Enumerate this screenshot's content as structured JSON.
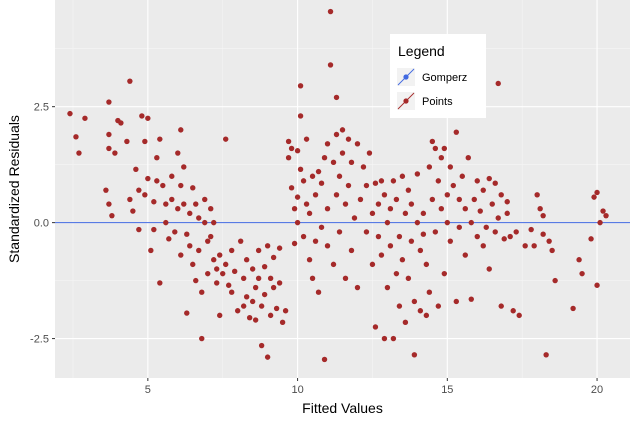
{
  "chart_data": {
    "type": "scatter",
    "title": "",
    "xlabel": "Fitted Values",
    "ylabel": "Standardized Residuals",
    "xlim": [
      1.9,
      21.1
    ],
    "ylim": [
      -3.35,
      4.8
    ],
    "x_ticks": [
      5,
      10,
      15,
      20
    ],
    "y_ticks": [
      -2.5,
      0.0,
      2.5
    ],
    "y_tick_labels": [
      "-2.5",
      "0.0",
      "2.5"
    ],
    "grid": true,
    "background": "#ebebeb",
    "point_color": "#a52a2a",
    "reference_line": {
      "y": 0.0,
      "color": "#4169e1"
    },
    "legend": {
      "title": "Legend",
      "placement": "top-center-right",
      "entries": [
        {
          "label": "Gomperz",
          "color": "#4169e1",
          "kind": "line"
        },
        {
          "label": "Points",
          "color": "#a52a2a",
          "kind": "point"
        }
      ]
    },
    "series": [
      {
        "name": "Points",
        "points": [
          [
            2.4,
            2.35
          ],
          [
            2.6,
            1.85
          ],
          [
            2.7,
            1.5
          ],
          [
            2.9,
            2.25
          ],
          [
            3.7,
            2.6
          ],
          [
            3.7,
            1.9
          ],
          [
            3.7,
            1.6
          ],
          [
            3.6,
            0.7
          ],
          [
            3.7,
            0.4
          ],
          [
            3.8,
            0.15
          ],
          [
            3.9,
            1.5
          ],
          [
            4.0,
            2.2
          ],
          [
            4.1,
            2.15
          ],
          [
            4.3,
            1.75
          ],
          [
            4.4,
            3.05
          ],
          [
            4.4,
            0.5
          ],
          [
            4.5,
            0.25
          ],
          [
            4.6,
            1.15
          ],
          [
            4.7,
            0.7
          ],
          [
            4.7,
            -0.15
          ],
          [
            4.8,
            2.3
          ],
          [
            4.9,
            1.75
          ],
          [
            4.9,
            0.6
          ],
          [
            5.0,
            2.25
          ],
          [
            5.0,
            0.95
          ],
          [
            5.1,
            -0.6
          ],
          [
            5.2,
            0.45
          ],
          [
            5.2,
            -0.15
          ],
          [
            5.3,
            1.4
          ],
          [
            5.3,
            0.9
          ],
          [
            5.4,
            -1.3
          ],
          [
            5.4,
            1.8
          ],
          [
            5.5,
            0.8
          ],
          [
            5.6,
            0.4
          ],
          [
            5.6,
            0.0
          ],
          [
            5.7,
            -0.35
          ],
          [
            5.8,
            1.0
          ],
          [
            5.8,
            0.5
          ],
          [
            5.9,
            -0.2
          ],
          [
            6.0,
            0.3
          ],
          [
            6.0,
            1.5
          ],
          [
            6.1,
            2.0
          ],
          [
            6.1,
            0.8
          ],
          [
            6.1,
            -0.7
          ],
          [
            6.2,
            1.2
          ],
          [
            6.2,
            0.4
          ],
          [
            6.3,
            -0.25
          ],
          [
            6.3,
            -1.95
          ],
          [
            6.4,
            0.2
          ],
          [
            6.4,
            -0.5
          ],
          [
            6.5,
            0.75
          ],
          [
            6.5,
            -0.9
          ],
          [
            6.6,
            0.4
          ],
          [
            6.6,
            -1.25
          ],
          [
            6.7,
            0.1
          ],
          [
            6.7,
            -0.6
          ],
          [
            6.8,
            -2.5
          ],
          [
            6.8,
            -1.5
          ],
          [
            6.9,
            0.5
          ],
          [
            6.9,
            0.0
          ],
          [
            7.0,
            -0.4
          ],
          [
            7.0,
            -1.1
          ],
          [
            7.1,
            0.3
          ],
          [
            7.1,
            -0.3
          ],
          [
            7.2,
            0.0
          ],
          [
            7.2,
            -0.8
          ],
          [
            7.3,
            -1.0
          ],
          [
            7.3,
            -1.3
          ],
          [
            7.4,
            -0.7
          ],
          [
            7.4,
            -2.0
          ],
          [
            7.5,
            -1.1
          ],
          [
            7.6,
            1.8
          ],
          [
            7.6,
            -0.9
          ],
          [
            7.7,
            -1.35
          ],
          [
            7.8,
            -0.6
          ],
          [
            7.8,
            -1.5
          ],
          [
            7.9,
            -1.05
          ],
          [
            8.0,
            -1.9
          ],
          [
            8.1,
            -0.4
          ],
          [
            8.2,
            -1.2
          ],
          [
            8.2,
            -1.8
          ],
          [
            8.3,
            -0.8
          ],
          [
            8.3,
            -1.6
          ],
          [
            8.4,
            -2.05
          ],
          [
            8.5,
            -1.0
          ],
          [
            8.5,
            -1.7
          ],
          [
            8.6,
            -1.4
          ],
          [
            8.6,
            -2.1
          ],
          [
            8.7,
            -0.6
          ],
          [
            8.7,
            -1.2
          ],
          [
            8.8,
            -2.65
          ],
          [
            8.8,
            -1.8
          ],
          [
            8.9,
            -0.95
          ],
          [
            8.9,
            -1.55
          ],
          [
            9.0,
            -2.9
          ],
          [
            9.0,
            -0.5
          ],
          [
            9.1,
            -1.2
          ],
          [
            9.1,
            -2.0
          ],
          [
            9.2,
            -0.75
          ],
          [
            9.2,
            -1.4
          ],
          [
            9.3,
            -1.85
          ],
          [
            9.4,
            -0.55
          ],
          [
            9.4,
            -1.3
          ],
          [
            9.5,
            -2.15
          ],
          [
            9.6,
            -1.9
          ],
          [
            9.7,
            1.75
          ],
          [
            9.7,
            1.4
          ],
          [
            9.8,
            1.6
          ],
          [
            9.8,
            0.75
          ],
          [
            9.9,
            -0.45
          ],
          [
            9.9,
            0.3
          ],
          [
            10.0,
            1.55
          ],
          [
            10.0,
            0.55
          ],
          [
            10.0,
            0.0
          ],
          [
            10.1,
            2.95
          ],
          [
            10.1,
            2.3
          ],
          [
            10.1,
            1.15
          ],
          [
            10.2,
            0.9
          ],
          [
            10.2,
            -0.3
          ],
          [
            10.3,
            1.8
          ],
          [
            10.3,
            0.4
          ],
          [
            10.4,
            -0.8
          ],
          [
            10.4,
            0.2
          ],
          [
            10.5,
            1.0
          ],
          [
            10.5,
            -1.2
          ],
          [
            10.6,
            0.6
          ],
          [
            10.6,
            -0.4
          ],
          [
            10.7,
            1.1
          ],
          [
            10.7,
            -1.5
          ],
          [
            10.8,
            -0.1
          ],
          [
            10.8,
            0.85
          ],
          [
            10.9,
            -2.95
          ],
          [
            10.9,
            1.4
          ],
          [
            11.0,
            -0.5
          ],
          [
            11.0,
            0.3
          ],
          [
            11.0,
            1.7
          ],
          [
            11.1,
            4.55
          ],
          [
            11.1,
            3.4
          ],
          [
            11.2,
            1.3
          ],
          [
            11.2,
            -0.9
          ],
          [
            11.3,
            2.7
          ],
          [
            11.3,
            1.9
          ],
          [
            11.3,
            0.6
          ],
          [
            11.4,
            1.0
          ],
          [
            11.4,
            -0.2
          ],
          [
            11.5,
            2.0
          ],
          [
            11.5,
            1.5
          ],
          [
            11.6,
            0.4
          ],
          [
            11.6,
            -1.2
          ],
          [
            11.7,
            1.8
          ],
          [
            11.7,
            0.8
          ],
          [
            11.8,
            -0.6
          ],
          [
            11.8,
            1.3
          ],
          [
            11.9,
            0.1
          ],
          [
            12.0,
            1.7
          ],
          [
            12.0,
            -1.4
          ],
          [
            12.1,
            0.5
          ],
          [
            12.2,
            1.2
          ],
          [
            12.3,
            -0.2
          ],
          [
            12.3,
            0.8
          ],
          [
            12.4,
            1.5
          ],
          [
            12.5,
            0.2
          ],
          [
            12.5,
            -0.9
          ],
          [
            12.6,
            0.85
          ],
          [
            12.6,
            -2.25
          ],
          [
            12.7,
            0.4
          ],
          [
            12.7,
            -0.3
          ],
          [
            12.8,
            0.9
          ],
          [
            12.8,
            -0.7
          ],
          [
            12.9,
            -2.5
          ],
          [
            12.9,
            0.6
          ],
          [
            13.0,
            0.0
          ],
          [
            13.0,
            -1.4
          ],
          [
            13.1,
            0.3
          ],
          [
            13.1,
            -0.5
          ],
          [
            13.2,
            -2.5
          ],
          [
            13.2,
            0.9
          ],
          [
            13.3,
            -1.1
          ],
          [
            13.3,
            0.5
          ],
          [
            13.4,
            -0.3
          ],
          [
            13.4,
            -1.8
          ],
          [
            13.5,
            1.0
          ],
          [
            13.5,
            -0.8
          ],
          [
            13.6,
            0.2
          ],
          [
            13.6,
            -2.15
          ],
          [
            13.7,
            0.7
          ],
          [
            13.7,
            -1.2
          ],
          [
            13.8,
            -0.4
          ],
          [
            13.8,
            0.4
          ],
          [
            13.9,
            -2.85
          ],
          [
            13.9,
            -1.7
          ],
          [
            14.0,
            0.0
          ],
          [
            14.0,
            1.05
          ],
          [
            14.1,
            -0.6
          ],
          [
            14.1,
            -1.9
          ],
          [
            14.2,
            0.2
          ],
          [
            14.2,
            -0.25
          ],
          [
            14.3,
            -0.9
          ],
          [
            14.3,
            -2.0
          ],
          [
            14.4,
            1.2
          ],
          [
            14.4,
            -1.5
          ],
          [
            14.5,
            1.75
          ],
          [
            14.5,
            0.5
          ],
          [
            14.6,
            1.6
          ],
          [
            14.6,
            -0.2
          ],
          [
            14.7,
            0.9
          ],
          [
            14.7,
            -1.8
          ],
          [
            14.8,
            1.4
          ],
          [
            14.8,
            0.3
          ],
          [
            14.9,
            1.6
          ],
          [
            14.9,
            -1.1
          ],
          [
            15.0,
            0.6
          ],
          [
            15.0,
            0.0
          ],
          [
            15.1,
            1.2
          ],
          [
            15.1,
            -0.4
          ],
          [
            15.2,
            0.8
          ],
          [
            15.3,
            1.95
          ],
          [
            15.3,
            -1.7
          ],
          [
            15.4,
            0.5
          ],
          [
            15.4,
            -0.1
          ],
          [
            15.5,
            1.0
          ],
          [
            15.6,
            0.3
          ],
          [
            15.6,
            -0.7
          ],
          [
            15.7,
            1.4
          ],
          [
            15.8,
            0.0
          ],
          [
            15.8,
            -1.65
          ],
          [
            15.9,
            0.5
          ],
          [
            16.0,
            -0.3
          ],
          [
            16.0,
            0.9
          ],
          [
            16.1,
            0.25
          ],
          [
            16.2,
            -0.5
          ],
          [
            16.2,
            0.7
          ],
          [
            16.3,
            -0.1
          ],
          [
            16.4,
            0.95
          ],
          [
            16.4,
            -1.0
          ],
          [
            16.5,
            0.4
          ],
          [
            16.6,
            0.85
          ],
          [
            16.6,
            -0.2
          ],
          [
            16.7,
            3.0
          ],
          [
            16.7,
            0.1
          ],
          [
            16.8,
            -1.8
          ],
          [
            16.8,
            0.6
          ],
          [
            16.9,
            -0.35
          ],
          [
            17.0,
            0.2
          ],
          [
            17.0,
            0.45
          ],
          [
            17.1,
            -0.3
          ],
          [
            17.2,
            -1.9
          ],
          [
            17.3,
            -0.2
          ],
          [
            17.4,
            -2.0
          ],
          [
            17.6,
            -0.5
          ],
          [
            17.8,
            -0.15
          ],
          [
            17.9,
            -0.5
          ],
          [
            18.0,
            0.6
          ],
          [
            18.1,
            0.3
          ],
          [
            18.2,
            0.15
          ],
          [
            18.2,
            -0.25
          ],
          [
            18.3,
            -2.85
          ],
          [
            18.4,
            -0.4
          ],
          [
            18.5,
            -0.6
          ],
          [
            18.6,
            -1.25
          ],
          [
            19.2,
            -1.85
          ],
          [
            19.4,
            -0.8
          ],
          [
            19.5,
            -1.1
          ],
          [
            19.8,
            -0.35
          ],
          [
            19.9,
            0.55
          ],
          [
            20.0,
            -1.35
          ],
          [
            20.0,
            0.65
          ],
          [
            20.1,
            0.0
          ],
          [
            20.2,
            0.25
          ],
          [
            20.3,
            0.15
          ]
        ]
      }
    ]
  }
}
